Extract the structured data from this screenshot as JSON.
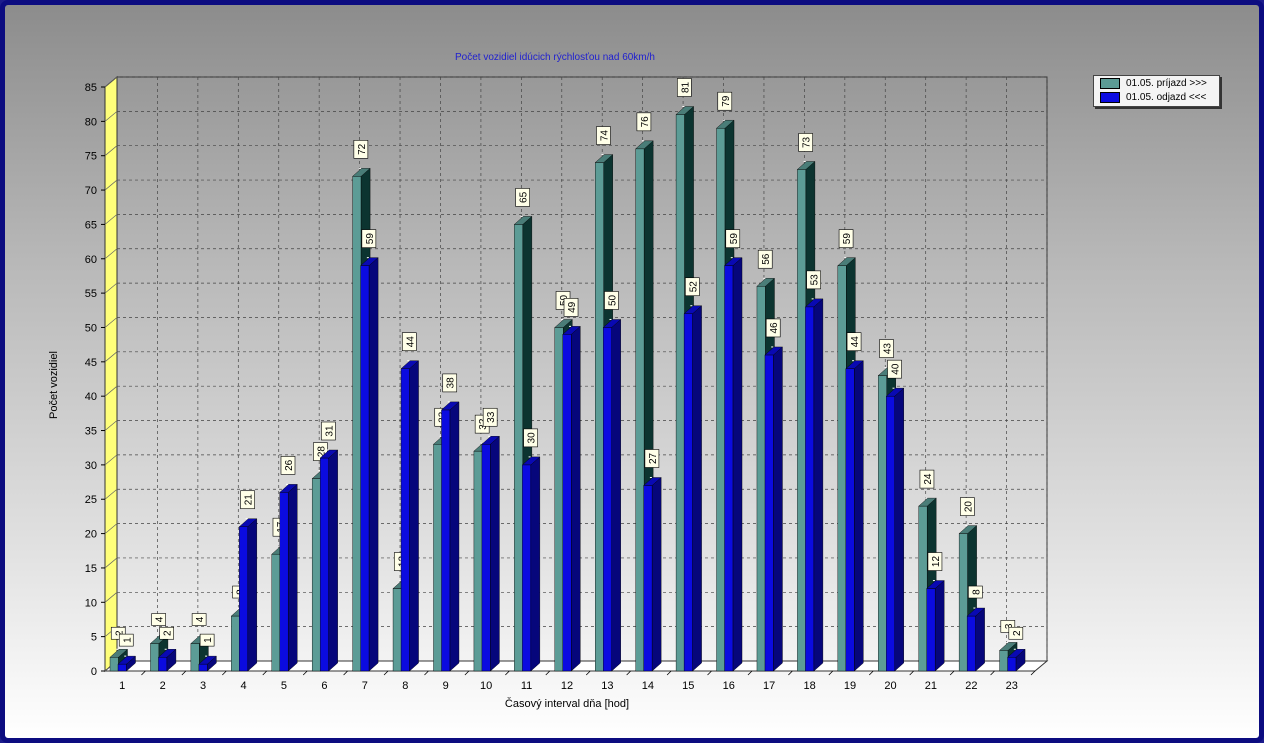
{
  "chart_data": {
    "type": "bar",
    "title": "Počet vozidiel idúcich rýchlosťou nad 60km/h",
    "xlabel": "Časový interval dňa [hod]",
    "ylabel": "Počet vozidiel",
    "ylim": [
      0,
      85
    ],
    "yticks": [
      0,
      5,
      10,
      15,
      20,
      25,
      30,
      35,
      40,
      45,
      50,
      55,
      60,
      65,
      70,
      75,
      80,
      85
    ],
    "grid": true,
    "three_d": true,
    "legend_position": "top-right",
    "categories": [
      "1",
      "2",
      "3",
      "4",
      "5",
      "6",
      "7",
      "8",
      "9",
      "10",
      "11",
      "12",
      "13",
      "14",
      "15",
      "16",
      "17",
      "18",
      "19",
      "20",
      "21",
      "22",
      "23"
    ],
    "series": [
      {
        "name": "01.05.  príjazd >>>",
        "color": "#5c9c96",
        "values": [
          2,
          4,
          4,
          8,
          17,
          28,
          72,
          12,
          33,
          32,
          65,
          50,
          74,
          76,
          81,
          79,
          56,
          73,
          59,
          43,
          24,
          20,
          3
        ]
      },
      {
        "name": "01.05.  odjazd <<<",
        "color": "#0b0be0",
        "values": [
          1,
          2,
          1,
          21,
          26,
          31,
          59,
          44,
          38,
          33,
          30,
          49,
          50,
          27,
          52,
          59,
          46,
          53,
          44,
          40,
          12,
          8,
          2
        ]
      }
    ]
  }
}
